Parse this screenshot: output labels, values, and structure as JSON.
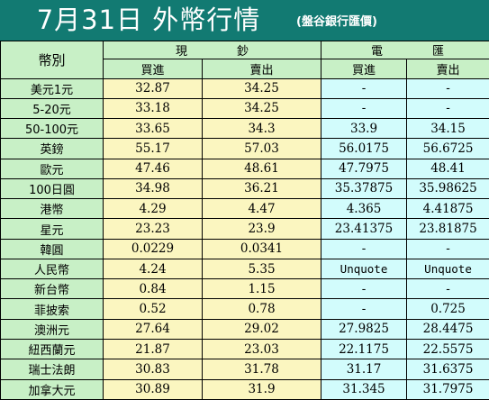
{
  "header": {
    "title": "7月31日 外幣行情",
    "subtitle": "(盤谷銀行匯價)"
  },
  "table": {
    "corner_label": "幣別",
    "groups": [
      {
        "label": "現鈔",
        "sub": [
          "買進",
          "賣出"
        ]
      },
      {
        "label": "電匯",
        "sub": [
          "買進",
          "賣出"
        ]
      }
    ],
    "rows": [
      {
        "currency": "美元1元",
        "cash_buy": "32.87",
        "cash_sell": "34.25",
        "tt_buy": "-",
        "tt_sell": "-"
      },
      {
        "currency": "5-20元",
        "cash_buy": "33.18",
        "cash_sell": "34.25",
        "tt_buy": "-",
        "tt_sell": "-"
      },
      {
        "currency": "50-100元",
        "cash_buy": "33.65",
        "cash_sell": "34.3",
        "tt_buy": "33.9",
        "tt_sell": "34.15"
      },
      {
        "currency": "英鎊",
        "cash_buy": "55.17",
        "cash_sell": "57.03",
        "tt_buy": "56.0175",
        "tt_sell": "56.6725"
      },
      {
        "currency": "歐元",
        "cash_buy": "47.46",
        "cash_sell": "48.61",
        "tt_buy": "47.7975",
        "tt_sell": "48.41"
      },
      {
        "currency": "100日圓",
        "cash_buy": "34.98",
        "cash_sell": "36.21",
        "tt_buy": "35.37875",
        "tt_sell": "35.98625"
      },
      {
        "currency": "港幣",
        "cash_buy": "4.29",
        "cash_sell": "4.47",
        "tt_buy": "4.365",
        "tt_sell": "4.41875"
      },
      {
        "currency": "星元",
        "cash_buy": "23.23",
        "cash_sell": "23.9",
        "tt_buy": "23.41375",
        "tt_sell": "23.81875"
      },
      {
        "currency": "韓圓",
        "cash_buy": "0.0229",
        "cash_sell": "0.0341",
        "tt_buy": "-",
        "tt_sell": "-"
      },
      {
        "currency": "人民幣",
        "cash_buy": "4.24",
        "cash_sell": "5.35",
        "tt_buy": "Unquote",
        "tt_sell": "Unquote"
      },
      {
        "currency": "新台幣",
        "cash_buy": "0.84",
        "cash_sell": "1.15",
        "tt_buy": "-",
        "tt_sell": "-"
      },
      {
        "currency": "菲披索",
        "cash_buy": "0.52",
        "cash_sell": "0.78",
        "tt_buy": "-",
        "tt_sell": "0.725"
      },
      {
        "currency": "澳洲元",
        "cash_buy": "27.64",
        "cash_sell": "29.02",
        "tt_buy": "27.9825",
        "tt_sell": "28.4475"
      },
      {
        "currency": "紐西蘭元",
        "cash_buy": "21.87",
        "cash_sell": "23.03",
        "tt_buy": "22.1175",
        "tt_sell": "22.5575"
      },
      {
        "currency": "瑞士法朗",
        "cash_buy": "30.83",
        "cash_sell": "31.78",
        "tt_buy": "31.17",
        "tt_sell": "31.6375"
      },
      {
        "currency": "加拿大元",
        "cash_buy": "30.89",
        "cash_sell": "31.9",
        "tt_buy": "31.345",
        "tt_sell": "31.7975"
      }
    ]
  },
  "colors": {
    "header_bg": "#127a72",
    "label_bg": "#c8f0c6",
    "cash_bg": "#fbf6c0",
    "tt_bg": "#d2fcfc"
  }
}
